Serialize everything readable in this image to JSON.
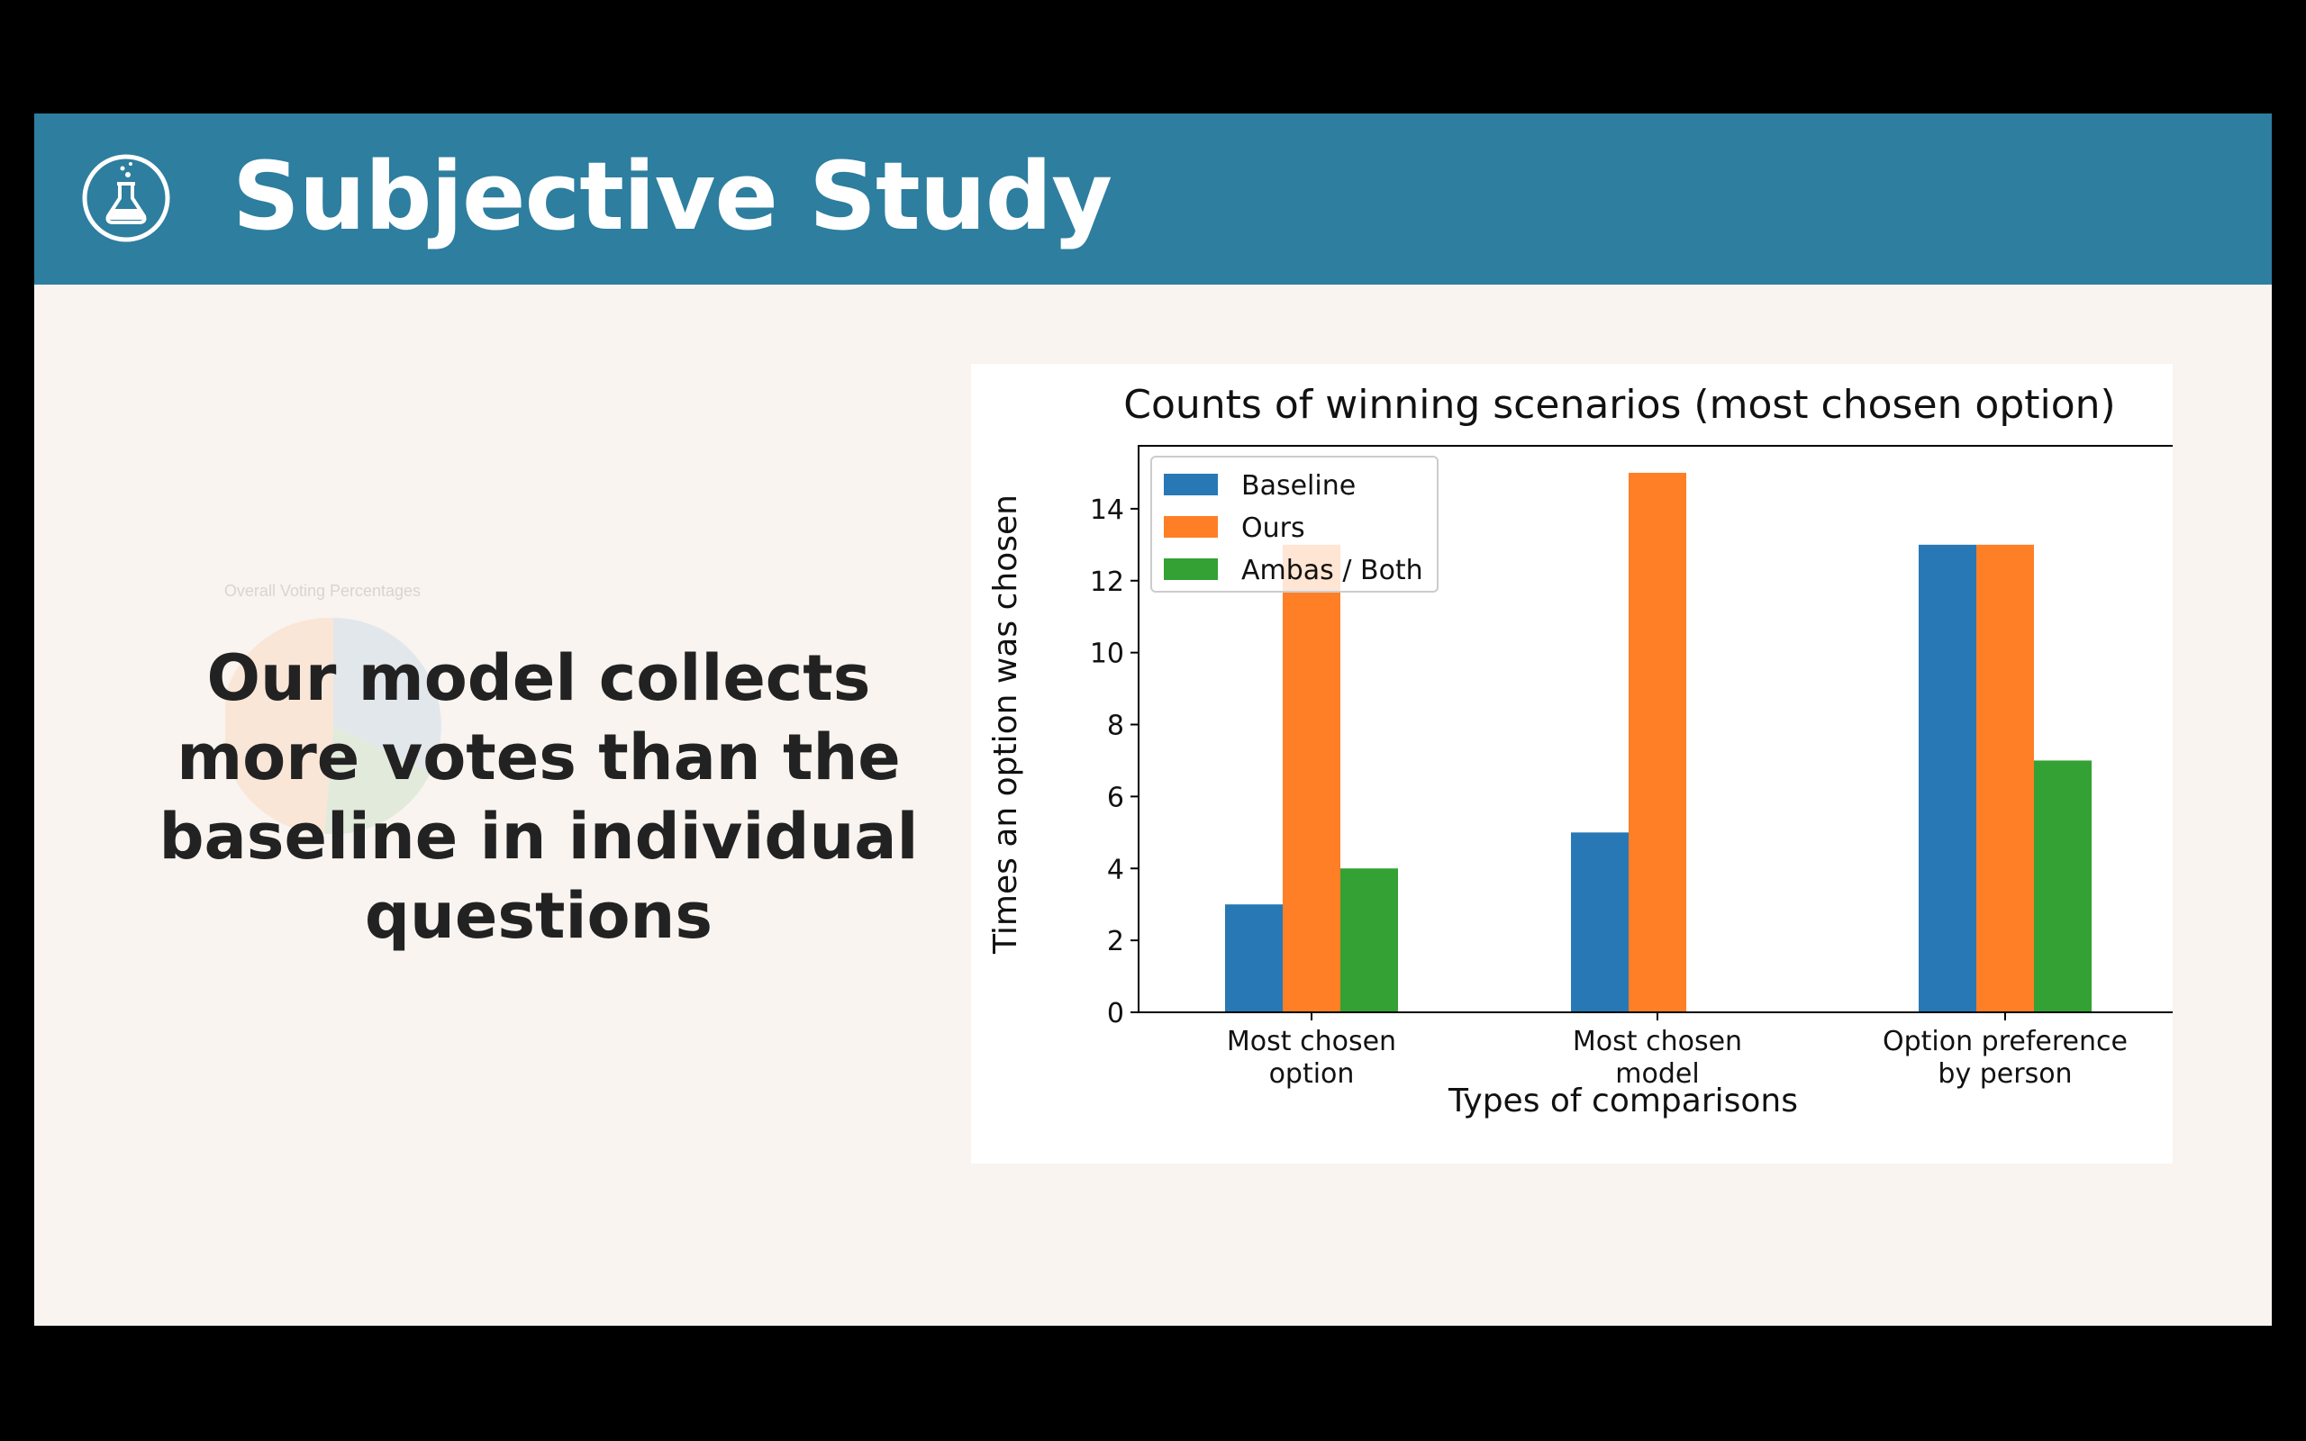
{
  "slide": {
    "title": "Subjective Study",
    "header_color": "#2d7e9f",
    "header_icon": "flask-icon",
    "statement": "Our model collects more votes than the baseline in individual questions",
    "faded_figure_title": "Overall Voting Percentages"
  },
  "chart_data": {
    "type": "bar",
    "title": "Counts of winning scenarios (most chosen option)",
    "xlabel": "Types of comparisons",
    "ylabel": "Times an option was chosen",
    "categories": [
      [
        "Most chosen",
        "option"
      ],
      [
        "Most chosen",
        "model"
      ],
      [
        "Option preference",
        "by person"
      ]
    ],
    "series": [
      {
        "name": "Baseline",
        "color": "#2878b5",
        "values": [
          3,
          5,
          13
        ]
      },
      {
        "name": "Ours",
        "color": "#ff7f27",
        "values": [
          13,
          15,
          13
        ]
      },
      {
        "name": "Ambas / Both",
        "color": "#33a133",
        "values": [
          4,
          0,
          7
        ]
      }
    ],
    "ylim": [
      0,
      15.75
    ],
    "yticks": [
      0,
      2,
      4,
      6,
      8,
      10,
      12,
      14
    ],
    "legend_position": "upper-left",
    "grid": false
  }
}
